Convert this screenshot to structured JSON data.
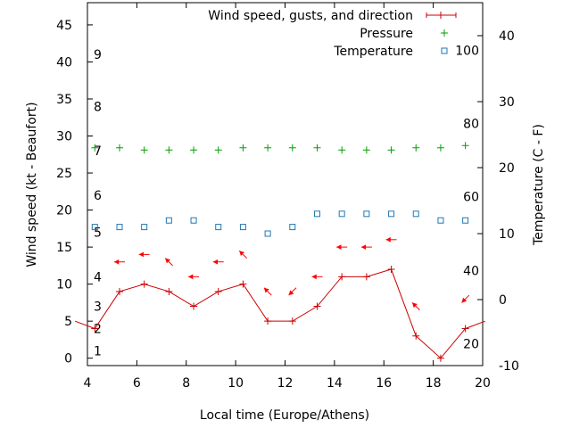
{
  "chart_data": {
    "type": "line",
    "xlabel": "Local time (Europe/Athens)",
    "ylabel_left": "Wind speed (kt - Beaufort)",
    "ylabel_right": "Temperature (C - F)",
    "xlim": [
      4,
      20
    ],
    "ylim_left": [
      -1,
      48
    ],
    "ylim_right": [
      -10,
      45
    ],
    "x_ticks": [
      4,
      6,
      8,
      10,
      12,
      14,
      16,
      18,
      20
    ],
    "y_ticks_left": [
      0,
      5,
      10,
      15,
      20,
      25,
      30,
      35,
      40,
      45
    ],
    "y_ticks_right": [
      -10,
      0,
      10,
      20,
      30,
      40
    ],
    "beaufort_ticks": [
      {
        "label": "1",
        "kt": 1
      },
      {
        "label": "2",
        "kt": 4
      },
      {
        "label": "3",
        "kt": 7
      },
      {
        "label": "4",
        "kt": 11
      },
      {
        "label": "5",
        "kt": 17
      },
      {
        "label": "6",
        "kt": 22
      },
      {
        "label": "7",
        "kt": 28
      },
      {
        "label": "8",
        "kt": 34
      },
      {
        "label": "9",
        "kt": 41
      }
    ],
    "fahrenheit_ticks": [
      {
        "label": "20",
        "c": -6.7
      },
      {
        "label": "40",
        "c": 4.4
      },
      {
        "label": "60",
        "c": 15.6
      },
      {
        "label": "80",
        "c": 26.7
      },
      {
        "label": "100",
        "c": 37.8
      }
    ],
    "legend_position": "top-right",
    "grid": false,
    "series": [
      {
        "name": "Wind speed, gusts, and direction",
        "kind": "line-points",
        "color": "#cc0000",
        "axis": "left",
        "x": [
          3.5,
          4.3,
          5.3,
          6.3,
          7.3,
          8.3,
          9.3,
          10.3,
          11.3,
          12.3,
          13.3,
          14.3,
          15.3,
          16.3,
          17.3,
          18.3,
          19.3,
          20.1
        ],
        "y": [
          5,
          4,
          9,
          10,
          9,
          7,
          9,
          10,
          5,
          5,
          7,
          11,
          11,
          12,
          3,
          0,
          4,
          5
        ]
      },
      {
        "name": "Pressure",
        "kind": "points-plus",
        "color": "#00a000",
        "axis": "left",
        "x": [
          4.3,
          5.3,
          6.3,
          7.3,
          8.3,
          9.3,
          10.3,
          11.3,
          12.3,
          13.3,
          14.3,
          15.3,
          16.3,
          17.3,
          18.3,
          19.3
        ],
        "y": [
          28.4,
          28.4,
          28.1,
          28.1,
          28.1,
          28.1,
          28.4,
          28.4,
          28.4,
          28.4,
          28.1,
          28.1,
          28.1,
          28.4,
          28.4,
          28.7
        ]
      },
      {
        "name": "Temperature",
        "kind": "points-square",
        "color": "#1f77b4",
        "axis": "right",
        "x": [
          4.3,
          5.3,
          6.3,
          7.3,
          8.3,
          9.3,
          10.3,
          11.3,
          12.3,
          13.3,
          14.3,
          15.3,
          16.3,
          17.3,
          18.3,
          19.3
        ],
        "y": [
          11,
          11,
          11,
          12,
          12,
          11,
          11,
          10,
          11,
          13,
          13,
          13,
          13,
          13,
          12,
          12
        ]
      }
    ],
    "wind_arrows": {
      "color": "#ff0000",
      "points": [
        {
          "x": 5.3,
          "y": 13,
          "dir": "w"
        },
        {
          "x": 6.3,
          "y": 14,
          "dir": "w"
        },
        {
          "x": 7.3,
          "y": 13,
          "dir": "nw"
        },
        {
          "x": 8.3,
          "y": 11,
          "dir": "w"
        },
        {
          "x": 9.3,
          "y": 13,
          "dir": "w"
        },
        {
          "x": 10.3,
          "y": 14,
          "dir": "nw"
        },
        {
          "x": 11.3,
          "y": 9,
          "dir": "nw"
        },
        {
          "x": 12.3,
          "y": 9,
          "dir": "sw"
        },
        {
          "x": 13.3,
          "y": 11,
          "dir": "w"
        },
        {
          "x": 14.3,
          "y": 15,
          "dir": "w"
        },
        {
          "x": 15.3,
          "y": 15,
          "dir": "w"
        },
        {
          "x": 16.3,
          "y": 16,
          "dir": "w"
        },
        {
          "x": 17.3,
          "y": 7,
          "dir": "nw"
        },
        {
          "x": 19.3,
          "y": 8,
          "dir": "sw"
        }
      ]
    }
  }
}
